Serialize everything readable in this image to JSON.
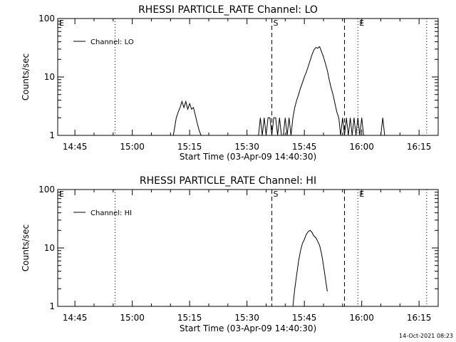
{
  "footer": {
    "timestamp": "14-Oct-2021 08:23"
  },
  "chart_data": [
    {
      "type": "line",
      "title": "RHESSI PARTICLE_RATE Channel: LO",
      "xlabel": "Start Time (03-Apr-09 14:40:30)",
      "ylabel": "Counts/sec",
      "yscale": "log",
      "ylim": [
        1,
        100
      ],
      "xlim": [
        "14:40:30",
        "16:20:00"
      ],
      "grid": false,
      "legend_position": "top-left",
      "x_tick_labels": [
        "14:45",
        "15:00",
        "15:15",
        "15:30",
        "15:45",
        "16:00",
        "16:15"
      ],
      "y_tick_labels": [
        "1",
        "10",
        "100"
      ],
      "series": [
        {
          "name": "Channel: LO",
          "x": [
            "15:10:45",
            "15:11:30",
            "15:12:00",
            "15:12:30",
            "15:13:00",
            "15:13:30",
            "15:14:00",
            "15:14:30",
            "15:15:00",
            "15:15:30",
            "15:16:00",
            "15:16:30",
            "15:17:00",
            "15:17:30",
            "15:18:00",
            "15:18:30",
            "15:33:00",
            "15:33:30",
            "15:34:00",
            "15:34:30",
            "15:35:00",
            "15:35:30",
            "15:36:00",
            "15:36:30",
            "15:37:00",
            "15:37:30",
            "15:38:00",
            "15:38:30",
            "15:39:00",
            "15:39:30",
            "15:40:00",
            "15:40:30",
            "15:41:00",
            "15:41:30",
            "15:42:00",
            "15:42:30",
            "15:43:00",
            "15:43:30",
            "15:44:00",
            "15:44:30",
            "15:45:00",
            "15:45:30",
            "15:46:00",
            "15:46:30",
            "15:47:00",
            "15:47:30",
            "15:48:00",
            "15:48:30",
            "15:49:00",
            "15:49:30",
            "15:50:00",
            "15:50:30",
            "15:51:00",
            "15:51:30",
            "15:52:00",
            "15:52:30",
            "15:53:00",
            "15:53:30",
            "15:54:00",
            "15:54:30",
            "15:55:00",
            "15:55:30",
            "15:56:00",
            "15:56:30",
            "15:57:00",
            "15:57:30",
            "15:58:00",
            "15:58:30",
            "15:59:00",
            "15:59:30",
            "16:00:00",
            "16:00:30",
            "16:01:00",
            "16:05:00",
            "16:05:30",
            "16:06:00"
          ],
          "y": [
            1.0,
            2.0,
            2.5,
            3.0,
            3.8,
            3.0,
            3.8,
            2.8,
            3.5,
            2.8,
            3.0,
            2.2,
            1.6,
            1.2,
            1.0,
            1.0,
            1.0,
            2.0,
            1.0,
            2.0,
            1.0,
            2.0,
            2.0,
            1.0,
            2.0,
            2.0,
            1.0,
            2.0,
            1.0,
            1.0,
            2.0,
            1.0,
            2.0,
            1.0,
            2.0,
            3.0,
            4.0,
            5.0,
            6.5,
            8.0,
            10.0,
            12.0,
            15.0,
            19.0,
            24.0,
            29.0,
            32.0,
            31.0,
            33.0,
            27.0,
            22.0,
            17.0,
            13.0,
            9.0,
            6.5,
            5.0,
            3.5,
            2.5,
            2.0,
            1.0,
            2.0,
            1.0,
            2.0,
            1.0,
            2.0,
            1.0,
            2.0,
            1.0,
            2.0,
            1.0,
            2.0,
            1.0,
            1.0,
            1.0,
            2.0,
            1.0
          ]
        }
      ],
      "annotations": [
        {
          "text": "E",
          "x": "14:40:30",
          "style": "dotted"
        },
        {
          "text": "",
          "x": "14:55:30",
          "style": "dotted"
        },
        {
          "text": "S",
          "x": "15:36:30",
          "style": "dashed"
        },
        {
          "text": "",
          "x": "15:55:30",
          "style": "dashed"
        },
        {
          "text": "E",
          "x": "15:59:00",
          "style": "dotted"
        },
        {
          "text": "",
          "x": "16:17:00",
          "style": "dotted"
        }
      ]
    },
    {
      "type": "line",
      "title": "RHESSI PARTICLE_RATE Channel: HI",
      "xlabel": "Start Time (03-Apr-09 14:40:30)",
      "ylabel": "Counts/sec",
      "yscale": "log",
      "ylim": [
        1,
        100
      ],
      "xlim": [
        "14:40:30",
        "16:20:00"
      ],
      "grid": false,
      "legend_position": "top-left",
      "x_tick_labels": [
        "14:45",
        "15:00",
        "15:15",
        "15:30",
        "15:45",
        "16:00",
        "16:15"
      ],
      "y_tick_labels": [
        "1",
        "10",
        "100"
      ],
      "series": [
        {
          "name": "Channel: HI",
          "x": [
            "15:42:00",
            "15:42:30",
            "15:43:00",
            "15:43:30",
            "15:44:00",
            "15:44:30",
            "15:45:00",
            "15:45:30",
            "15:46:00",
            "15:46:30",
            "15:47:00",
            "15:47:30",
            "15:48:00",
            "15:48:30",
            "15:49:00",
            "15:49:30",
            "15:50:00",
            "15:50:30",
            "15:51:00"
          ],
          "y": [
            1.0,
            2.0,
            3.5,
            6.0,
            9.0,
            12.0,
            14.0,
            17.0,
            19.0,
            20.0,
            18.5,
            16.0,
            15.0,
            13.0,
            11.0,
            8.0,
            5.0,
            3.0,
            1.8
          ]
        }
      ],
      "annotations": [
        {
          "text": "E",
          "x": "14:40:30",
          "style": "dotted"
        },
        {
          "text": "",
          "x": "14:55:30",
          "style": "dotted"
        },
        {
          "text": "S",
          "x": "15:36:30",
          "style": "dashed"
        },
        {
          "text": "",
          "x": "15:55:30",
          "style": "dashed"
        },
        {
          "text": "E",
          "x": "15:59:00",
          "style": "dotted"
        },
        {
          "text": "",
          "x": "16:17:00",
          "style": "dotted"
        }
      ]
    }
  ]
}
